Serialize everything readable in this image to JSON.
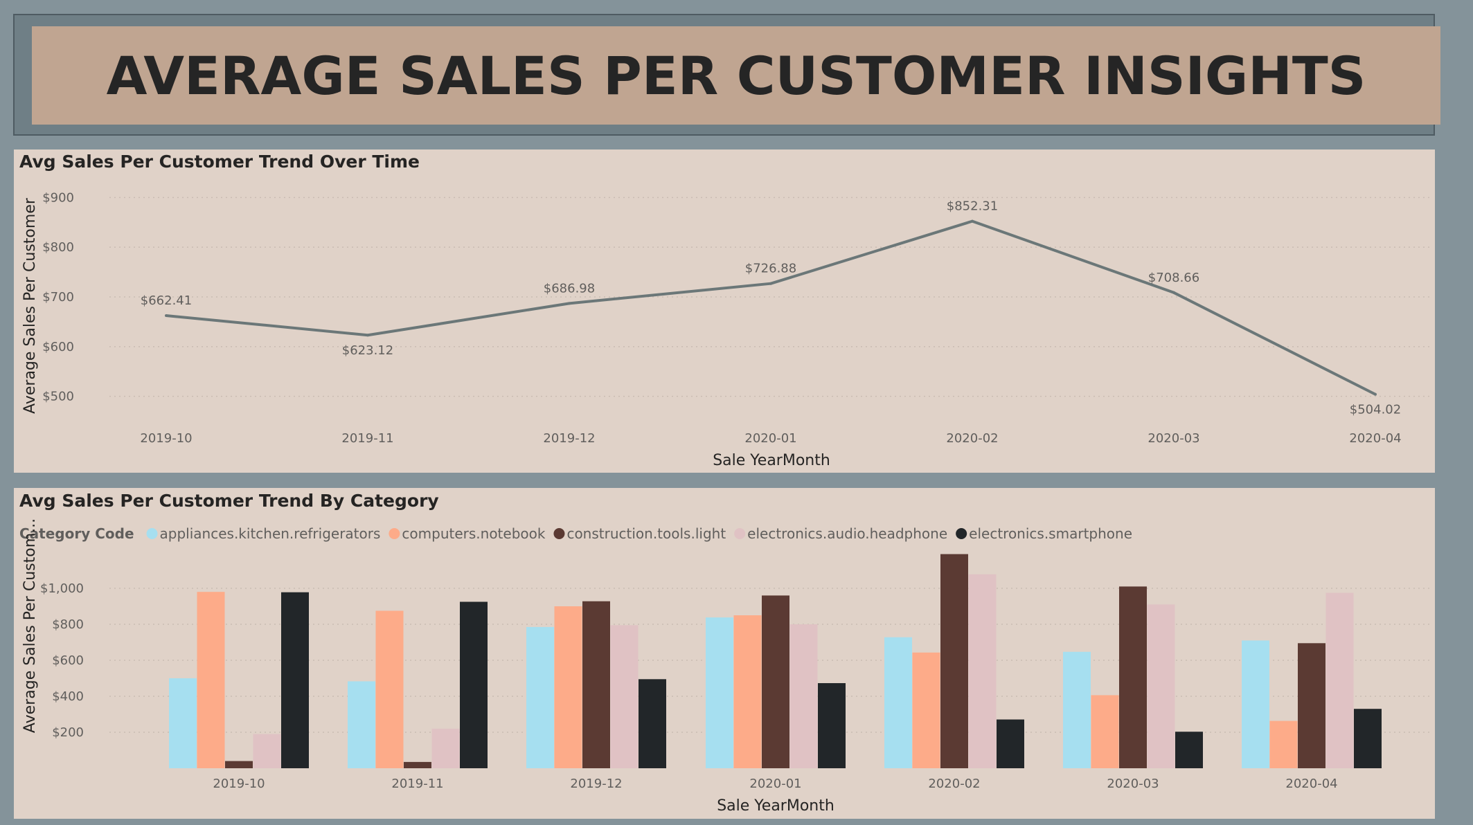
{
  "header": {
    "title": "AVERAGE SALES PER CUSTOMER INSIGHTS"
  },
  "colors": {
    "page_bg": "#84939a",
    "header_bg": "#c0a591",
    "panel_bg": "#e0d2c8",
    "line": "#6b7778"
  },
  "chart_data": [
    {
      "type": "line",
      "title": "Avg Sales Per Customer Trend Over Time",
      "xlabel": "Sale YearMonth",
      "ylabel": "Average Sales Per Customer",
      "x": [
        "2019-10",
        "2019-11",
        "2019-12",
        "2020-01",
        "2020-02",
        "2020-03",
        "2020-04"
      ],
      "values": [
        662.41,
        623.12,
        686.98,
        726.88,
        852.31,
        708.66,
        504.02
      ],
      "data_labels": [
        "$662.41",
        "$623.12",
        "$686.98",
        "$726.88",
        "$852.31",
        "$708.66",
        "$504.02"
      ],
      "y_ticks": [
        500,
        600,
        700,
        800,
        900
      ],
      "y_tick_labels": [
        "$500",
        "$600",
        "$700",
        "$800",
        "$900"
      ],
      "ylim": [
        480,
        920
      ],
      "grid": true
    },
    {
      "type": "bar",
      "title": "Avg Sales Per Customer Trend By Category",
      "xlabel": "Sale YearMonth",
      "ylabel": "Average Sales Per Custom...",
      "legend_title": "Category Code",
      "legend_position": "top-left",
      "categories": [
        "2019-10",
        "2019-11",
        "2019-12",
        "2020-01",
        "2020-02",
        "2020-03",
        "2020-04"
      ],
      "series": [
        {
          "name": "appliances.kitchen.refrigerators",
          "color": "#a6dff0",
          "values": [
            500,
            483,
            785,
            838,
            728,
            647,
            710
          ]
        },
        {
          "name": "computers.notebook",
          "color": "#fdab89",
          "values": [
            980,
            875,
            900,
            850,
            643,
            406,
            263
          ]
        },
        {
          "name": "construction.tools.light",
          "color": "#5b3a33",
          "values": [
            40,
            35,
            928,
            960,
            1190,
            1010,
            695
          ]
        },
        {
          "name": "electronics.audio.headphone",
          "color": "#e0c2c4",
          "values": [
            190,
            220,
            795,
            800,
            1078,
            910,
            975
          ]
        },
        {
          "name": "electronics.smartphone",
          "color": "#222629",
          "values": [
            978,
            925,
            495,
            473,
            271,
            203,
            330
          ]
        }
      ],
      "y_ticks": [
        200,
        400,
        600,
        800,
        1000
      ],
      "y_tick_labels": [
        "$200",
        "$400",
        "$600",
        "$800",
        "$1,000"
      ],
      "ylim": [
        0,
        1200
      ],
      "grid": true
    }
  ]
}
